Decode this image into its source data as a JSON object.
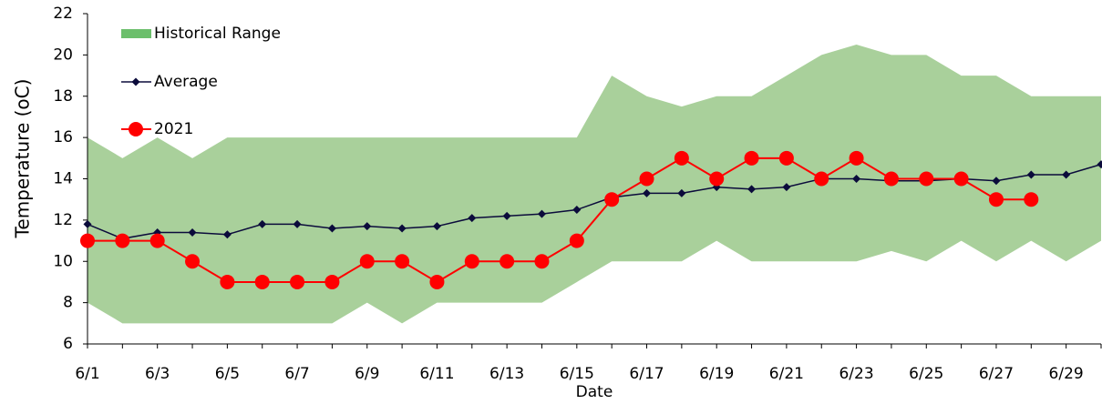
{
  "chart_data": {
    "type": "line",
    "x_label": "Date",
    "y_label": "Temperature (oC)",
    "categories": [
      "6/1",
      null,
      "6/3",
      null,
      "6/5",
      null,
      "6/7",
      null,
      "6/9",
      null,
      "6/11",
      null,
      "6/13",
      null,
      "6/15",
      null,
      "6/17",
      null,
      "6/19",
      null,
      "6/21",
      null,
      "6/23",
      null,
      "6/25",
      null,
      "6/27",
      null,
      "6/29",
      null
    ],
    "series": [
      {
        "name": "Historical Range",
        "color": "#a9d09b",
        "legend_color": "#6cbf6c",
        "high": [
          16,
          15,
          16,
          15,
          16,
          16,
          16,
          16,
          16,
          16,
          16,
          16,
          16,
          16,
          16,
          19,
          18,
          17.5,
          18,
          18,
          19,
          20,
          20.5,
          20,
          20,
          19,
          19,
          18,
          18,
          18
        ],
        "low": [
          8,
          7,
          7,
          7,
          7,
          7,
          7,
          7,
          8,
          7,
          8,
          8,
          8,
          8,
          9,
          10,
          10,
          10,
          11,
          10,
          10,
          10,
          10,
          10.5,
          10,
          11,
          10,
          11,
          10,
          11
        ]
      },
      {
        "name": "Average",
        "color": "#0b0b3b",
        "values": [
          11.8,
          11.1,
          11.4,
          11.4,
          11.3,
          11.8,
          11.8,
          11.6,
          11.7,
          11.6,
          11.7,
          12.1,
          12.2,
          12.3,
          12.5,
          13.1,
          13.3,
          13.3,
          13.6,
          13.5,
          13.6,
          14.0,
          14.0,
          13.9,
          13.9,
          14.0,
          13.9,
          14.2,
          14.2,
          14.7
        ]
      },
      {
        "name": "2021",
        "color": "#ff0000",
        "values": [
          11,
          11,
          11,
          10,
          9,
          9,
          9,
          9,
          10,
          10,
          9,
          10,
          10,
          10,
          11,
          13,
          14,
          15,
          14,
          15,
          15,
          14,
          15,
          14,
          14,
          14,
          13,
          13,
          null,
          null
        ]
      }
    ],
    "ylim": [
      6,
      22
    ],
    "yticks": [
      6,
      8,
      10,
      12,
      14,
      16,
      18,
      20,
      22
    ],
    "grid": false
  }
}
